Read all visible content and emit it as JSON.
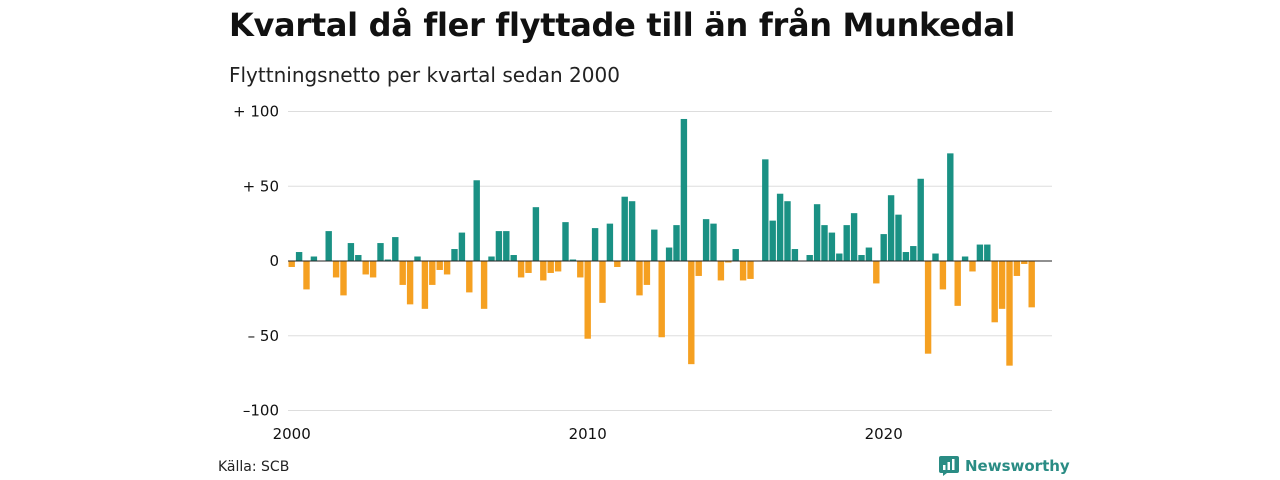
{
  "header": {
    "title": "Kvartal då fler flyttade till än från Munkedal",
    "subtitle": "Flyttningsnetto per kvartal sedan 2000"
  },
  "footer": {
    "source": "Källa: SCB",
    "brand": "Newsworthy"
  },
  "colors": {
    "positive": "#1a9184",
    "negative": "#f5a021",
    "grid": "#dddddd",
    "brand": "#2a8c84"
  },
  "chart_data": {
    "type": "bar",
    "start": "2000 Q1",
    "x_tick_labels": [
      "2000",
      "2010",
      "2020"
    ],
    "y_tick_labels": [
      "+ 100",
      "+  50",
      "0",
      "– 50",
      "–100"
    ],
    "y_ticks": [
      100,
      50,
      0,
      -50,
      -100
    ],
    "ylim": [
      -100,
      100
    ],
    "grid": true,
    "values": [
      -4,
      6,
      -19,
      3,
      0,
      20,
      -11,
      -23,
      12,
      4,
      -9,
      -11,
      12,
      1,
      16,
      -16,
      -29,
      3,
      -32,
      -16,
      -6,
      -9,
      8,
      19,
      -21,
      54,
      -32,
      3,
      20,
      20,
      4,
      -11,
      -8,
      36,
      -13,
      -8,
      -7,
      26,
      1,
      -11,
      -52,
      22,
      -28,
      25,
      -4,
      43,
      40,
      -23,
      -16,
      21,
      -51,
      9,
      24,
      95,
      -69,
      -10,
      28,
      25,
      -13,
      -1,
      8,
      -13,
      -12,
      0,
      68,
      27,
      45,
      40,
      8,
      0,
      4,
      38,
      24,
      19,
      5,
      24,
      32,
      4,
      9,
      -15,
      18,
      44,
      31,
      6,
      10,
      55,
      -62,
      5,
      -19,
      72,
      -30,
      3,
      -7,
      11,
      11,
      -41,
      -32,
      -70,
      -10,
      -2,
      -31
    ]
  }
}
